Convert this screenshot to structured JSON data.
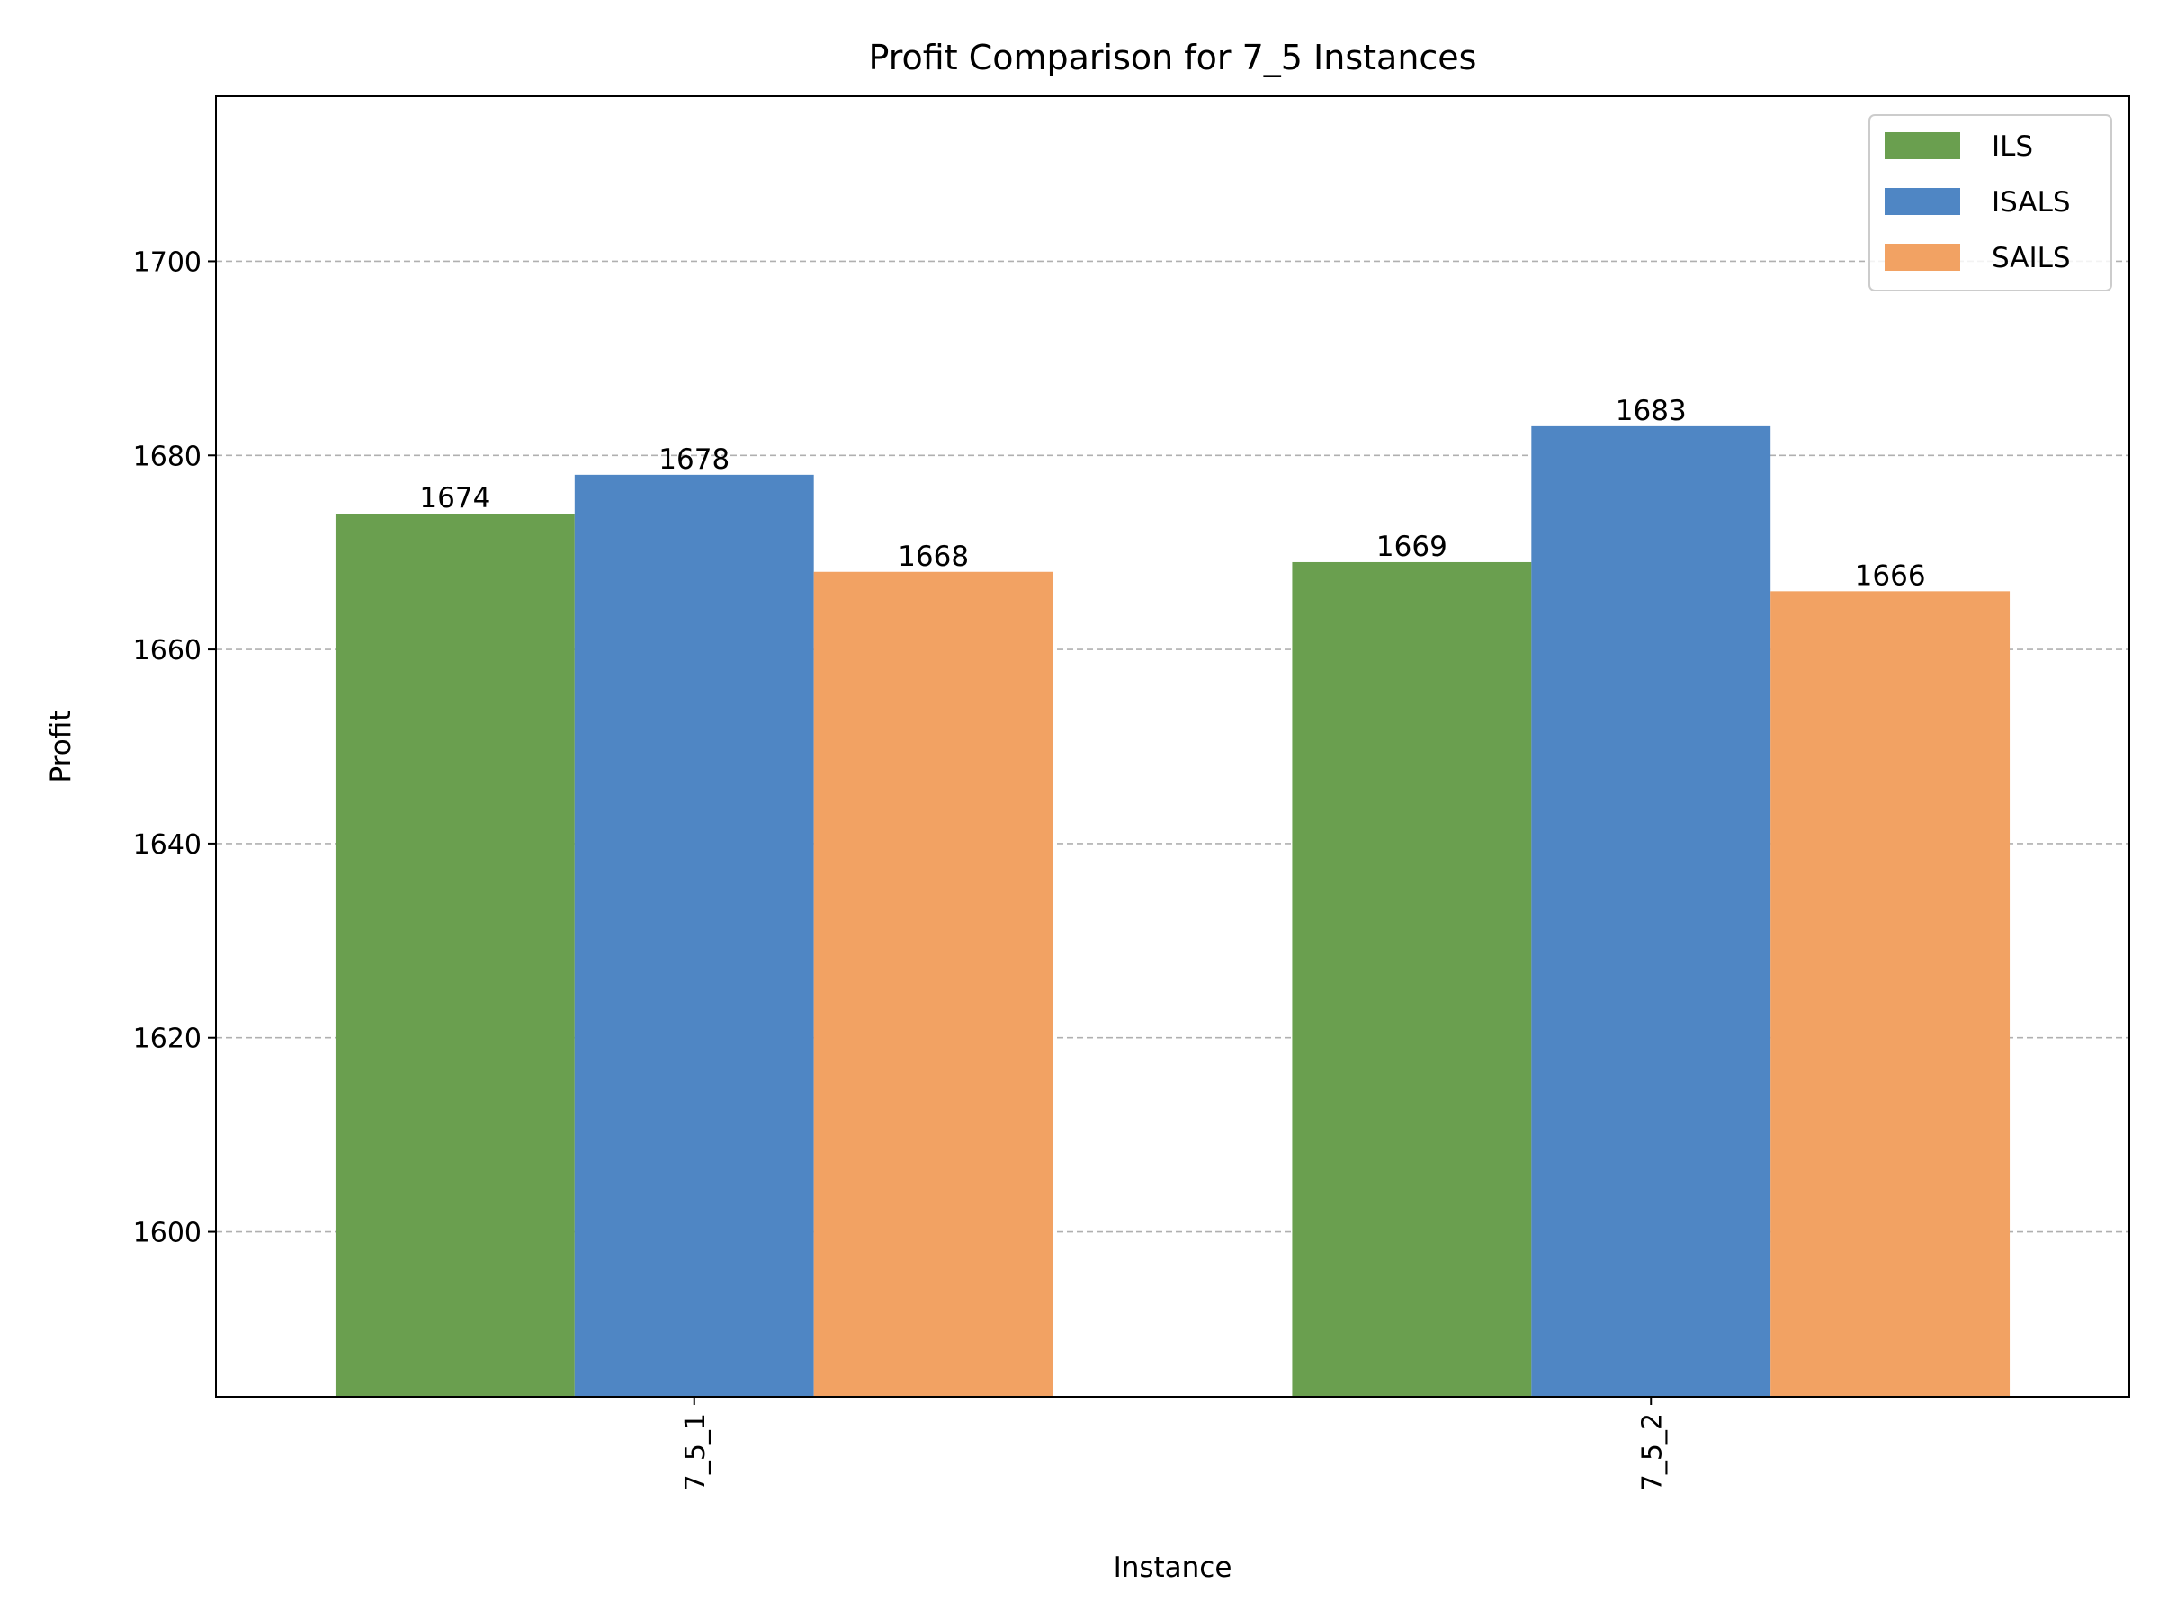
{
  "chart_data": {
    "type": "bar",
    "title": "Profit Comparison for 7_5 Instances",
    "xlabel": "Instance",
    "ylabel": "Profit",
    "categories": [
      "7_5_1",
      "7_5_2"
    ],
    "series": [
      {
        "name": "ILS",
        "color": "#6a9f4f",
        "values": [
          1674,
          1669
        ]
      },
      {
        "name": "ISALS",
        "color": "#4f86c4",
        "values": [
          1678,
          1683
        ]
      },
      {
        "name": "SAILS",
        "color": "#f2a263",
        "values": [
          1668,
          1666
        ]
      }
    ],
    "ylim": [
      1583,
      1717
    ],
    "yticks": [
      1600,
      1620,
      1640,
      1660,
      1680,
      1700
    ],
    "x_tick_rotation": "vertical",
    "grid": "y, dashed",
    "legend": "top-right",
    "show_bar_labels": true
  }
}
